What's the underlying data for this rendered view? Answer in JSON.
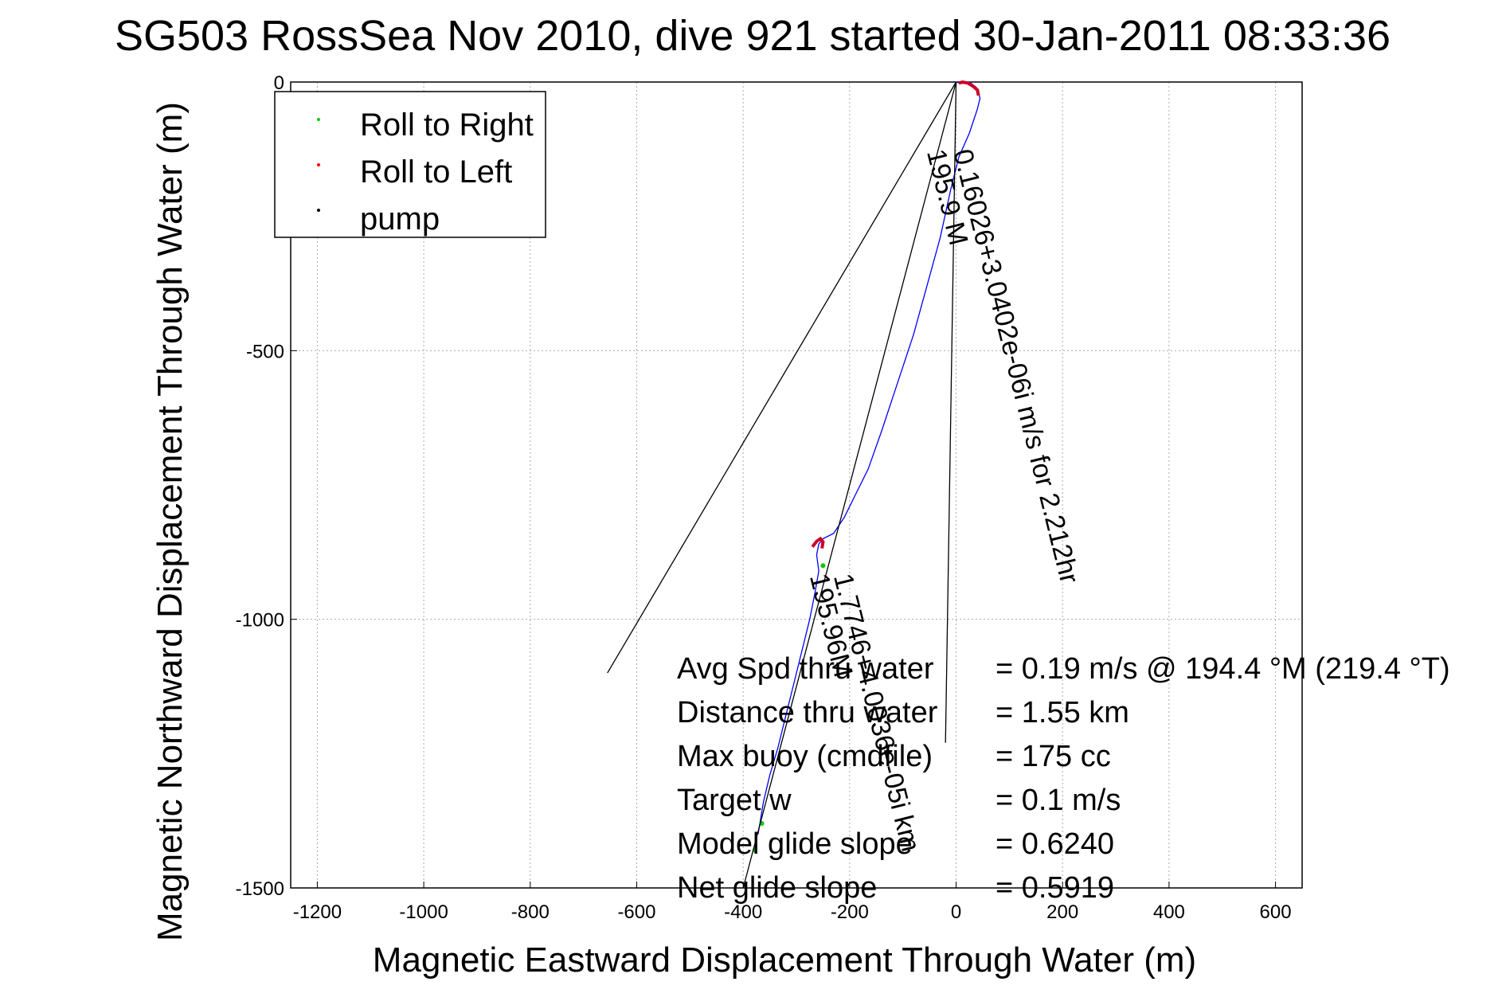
{
  "chart_data": {
    "type": "line",
    "title": "SG503 RossSea Nov 2010, dive 921 started 30-Jan-2011 08:33:36",
    "xlabel": "Magnetic Eastward Displacement Through Water (m)",
    "ylabel": "Magnetic Northward Displacement Through Water (m)",
    "xlim": [
      -1250,
      650
    ],
    "ylim": [
      -1500,
      0
    ],
    "xticks": [
      -1200,
      -1000,
      -800,
      -600,
      -400,
      -200,
      0,
      200,
      400,
      600
    ],
    "yticks": [
      0,
      -500,
      -1000,
      -1500
    ],
    "grid": true,
    "legend_position": "top-left",
    "legend": [
      {
        "label": "Roll to Right",
        "color": "#00cc00"
      },
      {
        "label": "Roll to Left",
        "color": "#ff0000"
      },
      {
        "label": "pump",
        "color": "#000000"
      }
    ],
    "series": [
      {
        "name": "track",
        "color": "#0000ff",
        "x": [
          0,
          10,
          25,
          38,
          45,
          40,
          25,
          5,
          -10,
          -30,
          -55,
          -80,
          -110,
          -140,
          -165,
          -190,
          -210,
          -230,
          -250,
          -258,
          -262,
          -258,
          -265,
          -275,
          -290,
          -305,
          -320,
          -335,
          -350,
          -362,
          -372
        ],
        "y": [
          0,
          -3,
          0,
          -10,
          -30,
          -50,
          -95,
          -140,
          -200,
          -290,
          -380,
          -470,
          -560,
          -650,
          -720,
          -770,
          -810,
          -840,
          -850,
          -860,
          -880,
          -910,
          -950,
          -1000,
          -1060,
          -1120,
          -1180,
          -1240,
          -1290,
          -1340,
          -1400
        ]
      },
      {
        "name": "roll-left-segments",
        "color": "#cc0022",
        "segments": [
          {
            "x": [
              5,
              12,
              22,
              32,
              40,
              42
            ],
            "y": [
              -2,
              0,
              -2,
              -8,
              -15,
              -25
            ]
          },
          {
            "x": [
              -270,
              -262,
              -255,
              -250,
              -252
            ],
            "y": [
              -865,
              -855,
              -850,
              -856,
              -868
            ]
          }
        ]
      },
      {
        "name": "roll-right-points",
        "color": "#00cc00",
        "x": [
          -250,
          -365,
          -378
        ],
        "y": [
          -900,
          -1380,
          -1430
        ]
      },
      {
        "name": "pump-lines",
        "color": "#000000",
        "segments": [
          {
            "x": [
              0,
              -20
            ],
            "y": [
              0,
              -1230
            ]
          },
          {
            "x": [
              0,
              -655
            ],
            "y": [
              0,
              -1100
            ]
          },
          {
            "x": [
              0,
              -400
            ],
            "y": [
              0,
              -1500
            ]
          }
        ]
      }
    ],
    "annotations": [
      {
        "text": "0.16026+3.0402e-06i m/s for 2.212hr",
        "x": -5,
        "y": -130,
        "angle_deg": 76
      },
      {
        "text": "195.9 M",
        "x": -55,
        "y": -130,
        "angle_deg": 76
      },
      {
        "text": "1.7746+4.0036e-05i km",
        "x": -230,
        "y": -920,
        "angle_deg": 76
      },
      {
        "text": "195.96M",
        "x": -275,
        "y": -920,
        "angle_deg": 76
      }
    ],
    "stats": [
      {
        "label": "Avg Spd thru water",
        "value": "=  0.19 m/s @ 194.4 °M (219.4 °T)"
      },
      {
        "label": "Distance thru water",
        "value": "=  1.55 km"
      },
      {
        "label": "Max buoy (cmdfile)",
        "value": "= 175 cc"
      },
      {
        "label": "Target w",
        "value": "= 0.1 m/s"
      },
      {
        "label": "Model glide slope",
        "value": "= 0.6240"
      },
      {
        "label": "Net glide slope",
        "value": "= 0.5919"
      }
    ]
  }
}
